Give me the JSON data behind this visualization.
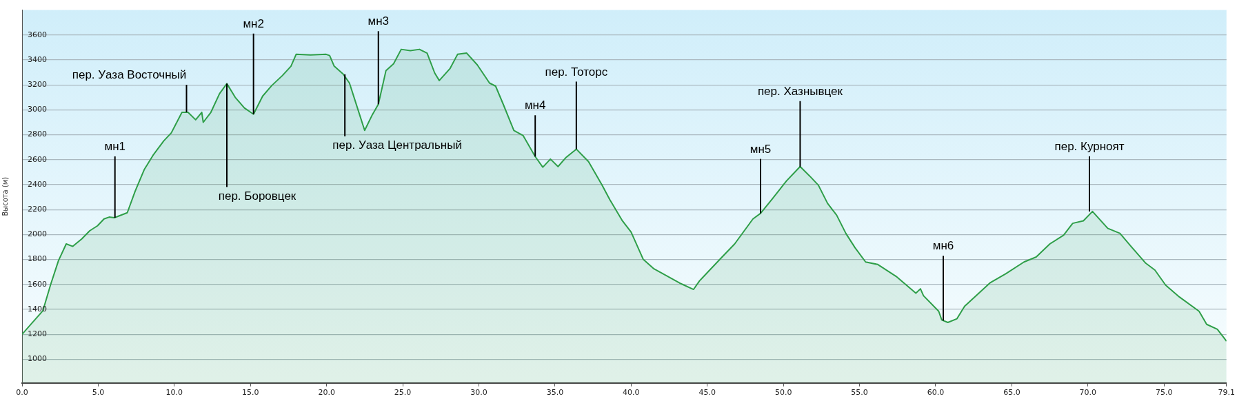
{
  "chart_data": {
    "type": "area",
    "ylabel": "Высота (м)",
    "color": "#2e9e48",
    "x": [
      0,
      1.37,
      1.88,
      2.39,
      2.9,
      3.33,
      3.92,
      4.44,
      4.95,
      5.38,
      5.72,
      6.06,
      6.91,
      7.42,
      8.02,
      8.6,
      9.3,
      9.8,
      10.5,
      10.9,
      11.4,
      11.8,
      11.9,
      12.4,
      12.97,
      13.45,
      14.0,
      14.6,
      15.2,
      15.8,
      16.4,
      17.1,
      17.66,
      18.0,
      18.94,
      19.97,
      20.2,
      20.5,
      21.1,
      21.5,
      22.0,
      22.5,
      23.0,
      23.4,
      23.9,
      24.4,
      24.9,
      25.5,
      26.1,
      26.6,
      27.1,
      27.4,
      28.1,
      28.6,
      29.2,
      29.9,
      30.7,
      31.1,
      31.6,
      32.3,
      32.9,
      33.7,
      34.2,
      34.7,
      35.2,
      35.7,
      36.4,
      37.2,
      38.1,
      38.6,
      39.4,
      40.0,
      40.8,
      41.5,
      43.2,
      44.1,
      44.5,
      45.9,
      46.8,
      48.0,
      48.5,
      49.3,
      50.2,
      51.1,
      51.8,
      52.3,
      52.9,
      53.5,
      54.1,
      54.7,
      55.4,
      56.2,
      57.4,
      58.7,
      59.0,
      59.2,
      60.2,
      60.4,
      60.8,
      61.4,
      61.9,
      63.6,
      64.6,
      65.8,
      66.6,
      67.5,
      68.4,
      69.0,
      69.7,
      70.3,
      71.3,
      72.1,
      72.9,
      73.8,
      74.4,
      75.1,
      76.0,
      77.3,
      77.8,
      78.5,
      79.1
    ],
    "values": [
      1200,
      1390,
      1600,
      1790,
      1925,
      1905,
      1965,
      2030,
      2070,
      2125,
      2140,
      2135,
      2175,
      2345,
      2520,
      2635,
      2750,
      2815,
      2980,
      2980,
      2920,
      2980,
      2900,
      2980,
      3130,
      3210,
      3100,
      3015,
      2965,
      3110,
      3195,
      3275,
      3350,
      3445,
      3440,
      3445,
      3435,
      3350,
      3285,
      3215,
      3025,
      2835,
      2960,
      3045,
      3315,
      3370,
      3485,
      3475,
      3485,
      3455,
      3295,
      3235,
      3330,
      3445,
      3455,
      3360,
      3215,
      3190,
      3045,
      2835,
      2795,
      2625,
      2540,
      2605,
      2545,
      2615,
      2685,
      2585,
      2395,
      2280,
      2115,
      2020,
      1800,
      1725,
      1610,
      1560,
      1630,
      1810,
      1925,
      2125,
      2170,
      2290,
      2430,
      2545,
      2460,
      2395,
      2250,
      2155,
      2010,
      1895,
      1780,
      1760,
      1665,
      1530,
      1565,
      1510,
      1385,
      1315,
      1295,
      1325,
      1425,
      1615,
      1685,
      1780,
      1820,
      1925,
      1995,
      2090,
      2110,
      2185,
      2050,
      2010,
      1895,
      1770,
      1715,
      1595,
      1500,
      1385,
      1280,
      1240,
      1145
    ],
    "xlim": [
      0,
      79.1
    ],
    "xticks": [
      {
        "value": 0,
        "label": "0.0"
      },
      {
        "value": 5,
        "label": "5.0"
      },
      {
        "value": 10,
        "label": "10.0"
      },
      {
        "value": 15,
        "label": "15.0"
      },
      {
        "value": 20,
        "label": "20.0"
      },
      {
        "value": 25,
        "label": "25.0"
      },
      {
        "value": 30,
        "label": "30.0"
      },
      {
        "value": 35,
        "label": "35.0"
      },
      {
        "value": 40,
        "label": "40.0"
      },
      {
        "value": 45,
        "label": "45.0"
      },
      {
        "value": 50,
        "label": "50.0"
      },
      {
        "value": 55,
        "label": "55.0"
      },
      {
        "value": 60,
        "label": "60.0"
      },
      {
        "value": 65,
        "label": "65.0"
      },
      {
        "value": 70,
        "label": "70.0"
      },
      {
        "value": 75,
        "label": "75.0"
      },
      {
        "value": 79.1,
        "label": "79.1"
      }
    ],
    "ylim": [
      810,
      3800
    ],
    "yticks": [
      1000,
      1200,
      1400,
      1600,
      1800,
      2000,
      2200,
      2400,
      2600,
      2800,
      3000,
      3200,
      3400,
      3600
    ],
    "grid": "y",
    "annotations": [
      {
        "text": "мн1",
        "x": 6.1,
        "y": 2135
      },
      {
        "text": "пер. Уаза Восточный",
        "x": 10.8,
        "y": 2980
      },
      {
        "text": "мн2",
        "x": 15.2,
        "y": 2965
      },
      {
        "text": "пер. Боровцек",
        "x": 13.45,
        "y": 3210
      },
      {
        "text": "мн3",
        "x": 23.4,
        "y": 3045
      },
      {
        "text": "пер. Уаза Центральный",
        "x": 21.2,
        "y": 3285
      },
      {
        "text": "мн4",
        "x": 33.7,
        "y": 2625
      },
      {
        "text": "пер. Тоторс",
        "x": 36.4,
        "y": 2685
      },
      {
        "text": "мн5",
        "x": 48.5,
        "y": 2170
      },
      {
        "text": "пер. Хазнывцек",
        "x": 51.1,
        "y": 2545
      },
      {
        "text": "мн6",
        "x": 60.5,
        "y": 1310
      },
      {
        "text": "пер. Курноят",
        "x": 70.1,
        "y": 2185
      }
    ]
  }
}
